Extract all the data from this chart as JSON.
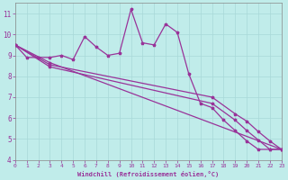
{
  "xlabel": "Windchill (Refroidissement éolien,°C)",
  "xlim": [
    0,
    23
  ],
  "ylim": [
    4,
    11.5
  ],
  "yticks": [
    4,
    5,
    6,
    7,
    8,
    9,
    10,
    11
  ],
  "xticks": [
    0,
    1,
    2,
    3,
    4,
    5,
    6,
    7,
    8,
    9,
    10,
    11,
    12,
    13,
    14,
    15,
    16,
    17,
    18,
    19,
    20,
    21,
    22,
    23
  ],
  "bg_color": "#c0ecea",
  "grid_color": "#b0d8d8",
  "line_color": "#993399",
  "line1_x": [
    0,
    1,
    2,
    3,
    4,
    5,
    6,
    7,
    8,
    9,
    10,
    11,
    12,
    13,
    14,
    15,
    16,
    17,
    18,
    19,
    20,
    21,
    22,
    23
  ],
  "line1_y": [
    9.5,
    8.9,
    8.9,
    8.9,
    9.0,
    8.8,
    9.9,
    9.4,
    9.0,
    9.1,
    11.2,
    9.6,
    9.5,
    10.5,
    10.1,
    8.1,
    6.7,
    6.5,
    5.9,
    5.4,
    4.9,
    4.5,
    4.5,
    4.5
  ],
  "line2_x": [
    0,
    3,
    23
  ],
  "line2_y": [
    9.5,
    8.65,
    4.5
  ],
  "line3_x": [
    0,
    3,
    17,
    19,
    20,
    21,
    22,
    23
  ],
  "line3_y": [
    9.5,
    8.55,
    7.0,
    6.2,
    5.85,
    5.35,
    4.9,
    4.5
  ],
  "line4_x": [
    0,
    3,
    17,
    19,
    20,
    21,
    22,
    23
  ],
  "line4_y": [
    9.5,
    8.45,
    6.7,
    5.9,
    5.4,
    4.95,
    4.5,
    4.5
  ]
}
